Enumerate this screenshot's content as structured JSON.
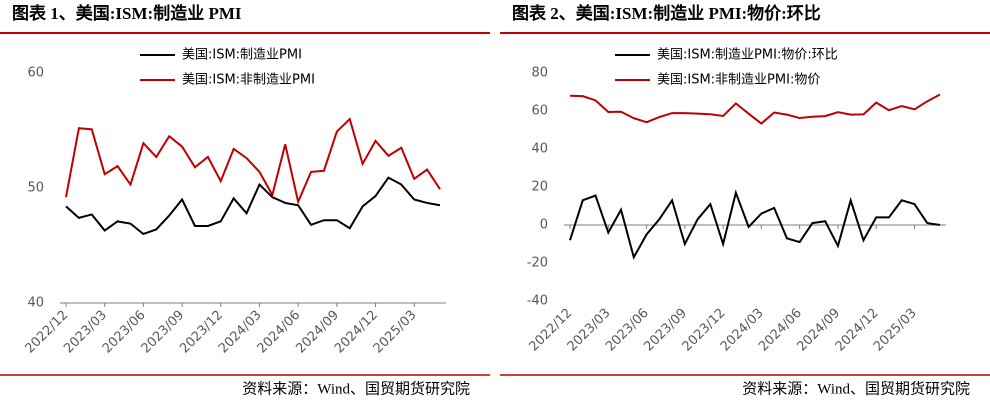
{
  "chart_data": [
    {
      "type": "line",
      "title": "图表 1、美国:ISM:制造业 PMI",
      "source": "资料来源：Wind、国贸期货研究院",
      "categories": [
        "2022/12",
        null,
        null,
        "2023/03",
        null,
        null,
        "2023/06",
        null,
        null,
        "2023/09",
        null,
        null,
        "2023/12",
        null,
        null,
        "2024/03",
        null,
        null,
        "2024/06",
        null,
        null,
        "2024/09",
        null,
        null,
        "2024/12",
        null,
        null,
        "2025/03",
        null,
        null
      ],
      "series": [
        {
          "name": "美国:ISM:制造业PMI",
          "color": "#000000",
          "values": [
            48.4,
            47.4,
            47.7,
            46.3,
            47.1,
            46.9,
            46.0,
            46.4,
            47.6,
            49.0,
            46.7,
            46.7,
            47.1,
            49.1,
            47.8,
            50.3,
            49.2,
            48.7,
            48.5,
            46.8,
            47.2,
            47.2,
            46.5,
            48.4,
            49.3,
            50.9,
            50.3,
            49.0,
            48.7,
            48.5
          ]
        },
        {
          "name": "美国:ISM:非制造业PMI",
          "color": "#c00000",
          "values": [
            49.2,
            55.2,
            55.1,
            51.2,
            51.9,
            50.3,
            53.9,
            52.7,
            54.5,
            53.6,
            51.8,
            52.7,
            50.6,
            53.4,
            52.6,
            51.4,
            49.4,
            53.8,
            48.8,
            51.4,
            51.5,
            54.9,
            56.0,
            52.1,
            54.1,
            52.8,
            53.5,
            50.8,
            51.6,
            49.9
          ]
        }
      ],
      "ylim": [
        40,
        60
      ],
      "yticks": [
        40,
        50,
        60
      ]
    },
    {
      "type": "line",
      "title": "图表 2、美国:ISM:制造业 PMI:物价:环比",
      "source": "资料来源：Wind、国贸期货研究院",
      "categories": [
        "2022/12",
        null,
        null,
        "2023/03",
        null,
        null,
        "2023/06",
        null,
        null,
        "2023/09",
        null,
        null,
        "2023/12",
        null,
        null,
        "2024/03",
        null,
        null,
        "2024/06",
        null,
        null,
        "2024/09",
        null,
        null,
        "2024/12",
        null,
        null,
        "2025/03",
        null,
        null
      ],
      "series": [
        {
          "name": "美国:ISM:制造业PMI:物价:环比",
          "color": "#000000",
          "values": [
            -8,
            13,
            15.5,
            -4,
            8,
            -17,
            -5,
            3,
            13,
            -10,
            3,
            11,
            -10,
            17,
            -1,
            6,
            9,
            -7,
            -9,
            1,
            2,
            -11,
            13,
            -8,
            4,
            4,
            13,
            11,
            1,
            0
          ]
        },
        {
          "name": "美国:ISM:非制造业PMI:物价",
          "color": "#c00000",
          "values": [
            68,
            67.8,
            65.6,
            59.5,
            59.6,
            56.2,
            54.1,
            56.8,
            58.9,
            58.9,
            58.6,
            58.3,
            57.4,
            64.0,
            58.6,
            53.4,
            59.2,
            58.1,
            56.3,
            57.0,
            57.3,
            59.4,
            58.1,
            58.2,
            64.4,
            60.4,
            62.6,
            60.9,
            65.1,
            68.7
          ]
        }
      ],
      "ylim": [
        -40,
        80
      ],
      "yticks": [
        -40,
        -20,
        0,
        20,
        40,
        60,
        80
      ]
    }
  ]
}
